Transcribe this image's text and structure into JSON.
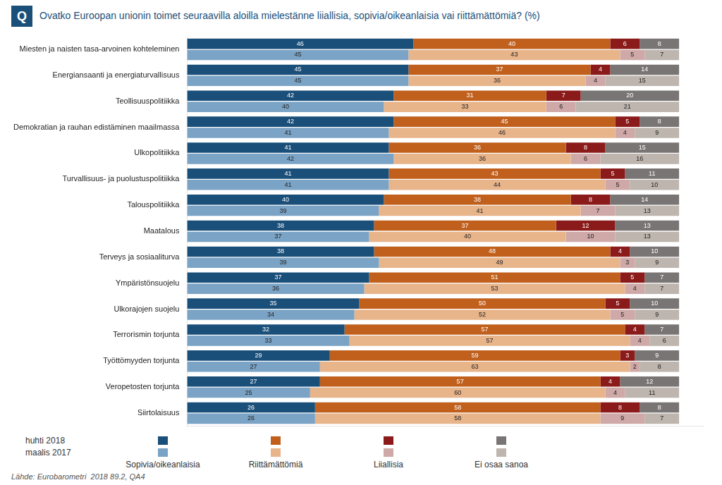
{
  "chart_data": {
    "type": "bar",
    "orientation": "horizontal",
    "stacked": true,
    "title": "Ovatko Euroopan unionin toimet seuraavilla aloilla mielestänne liiallisia, sopivia/oikeanlaisia vai riittämättömiä? (%)",
    "categories": [
      "Miesten ja naisten tasa-arvoinen kohteleminen",
      "Energiansaanti ja energiaturvallisuus",
      "Teollisuuspolitiikka",
      "Demokratian ja rauhan edistäminen maailmassa",
      "Ulkopolitiikka",
      "Turvallisuus- ja puolustuspolitiikka",
      "Talouspolitiikka",
      "Maatalous",
      "Terveys ja sosiaaliturva",
      "Ympäristönsuojelu",
      "Ulkorajojen suojelu",
      "Terrorismin torjunta",
      "Työttömyyden torjunta",
      "Veropetosten torjunta",
      "Siirtolaisuus"
    ],
    "segments": [
      "Sopivia/oikeanlaisia",
      "Riittämättömiä",
      "Liiallisia",
      "Ei osaa sanoa"
    ],
    "series": [
      {
        "name": "huhti 2018",
        "colors": [
          "#1a4f7a",
          "#c0601c",
          "#8b1a1a",
          "#7a7575"
        ],
        "values": [
          [
            46,
            40,
            6,
            8
          ],
          [
            45,
            37,
            4,
            14
          ],
          [
            42,
            31,
            7,
            20
          ],
          [
            42,
            45,
            5,
            8
          ],
          [
            41,
            36,
            8,
            15
          ],
          [
            41,
            43,
            5,
            11
          ],
          [
            40,
            38,
            8,
            14
          ],
          [
            38,
            37,
            12,
            13
          ],
          [
            38,
            48,
            4,
            10
          ],
          [
            37,
            51,
            5,
            7
          ],
          [
            35,
            50,
            5,
            10
          ],
          [
            32,
            57,
            4,
            7
          ],
          [
            29,
            59,
            3,
            9
          ],
          [
            27,
            57,
            4,
            12
          ],
          [
            26,
            58,
            8,
            8
          ]
        ]
      },
      {
        "name": "maalis 2017",
        "colors": [
          "#7ba3c5",
          "#e8b48a",
          "#cfa8a8",
          "#bdb5ae"
        ],
        "values": [
          [
            45,
            43,
            5,
            7
          ],
          [
            45,
            36,
            4,
            15
          ],
          [
            40,
            33,
            6,
            21
          ],
          [
            41,
            46,
            4,
            9
          ],
          [
            42,
            36,
            6,
            16
          ],
          [
            41,
            44,
            5,
            10
          ],
          [
            39,
            41,
            7,
            13
          ],
          [
            37,
            40,
            10,
            13
          ],
          [
            39,
            49,
            3,
            9
          ],
          [
            36,
            53,
            4,
            7
          ],
          [
            34,
            52,
            5,
            9
          ],
          [
            33,
            57,
            4,
            6
          ],
          [
            27,
            63,
            2,
            8
          ],
          [
            25,
            60,
            4,
            11
          ],
          [
            26,
            58,
            9,
            7
          ]
        ]
      }
    ],
    "xlim": [
      0,
      105
    ],
    "tick_labels": "y",
    "grid": false,
    "data_labels": true,
    "legend": "bottom",
    "annotations": [
      "Q",
      "Lähde: Eurobarometri  2018 89.2, QA4"
    ]
  }
}
